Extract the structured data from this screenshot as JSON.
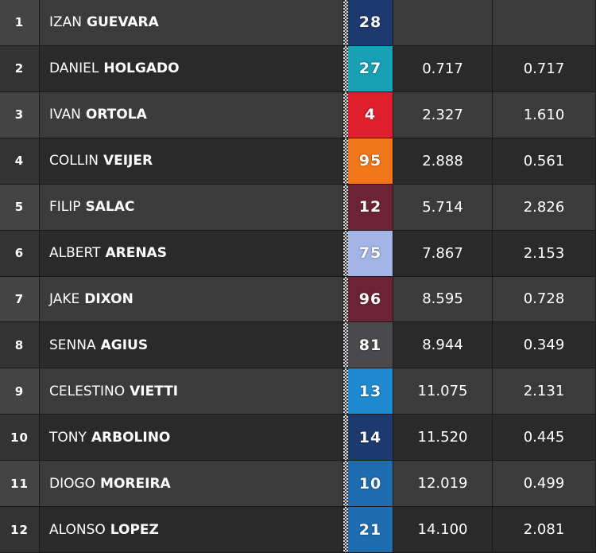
{
  "table": {
    "rows": [
      {
        "position": "1",
        "first_name": "IZAN",
        "last_name": "GUEVARA",
        "number": "28",
        "color": "#1d3a6f"
      },
      {
        "position": "2",
        "first_name": "DANIEL",
        "last_name": "HOLGADO",
        "number": "27",
        "color": "#17a0b6",
        "gap": "0.717",
        "interval": "0.717"
      },
      {
        "position": "3",
        "first_name": "IVAN",
        "last_name": "ORTOLA",
        "number": "4",
        "color": "#e01f2d",
        "gap": "2.327",
        "interval": "1.610"
      },
      {
        "position": "4",
        "first_name": "COLLIN",
        "last_name": "VEIJER",
        "number": "95",
        "color": "#f2771b",
        "gap": "2.888",
        "interval": "0.561"
      },
      {
        "position": "5",
        "first_name": "FILIP",
        "last_name": "SALAC",
        "number": "12",
        "color": "#6c2435",
        "gap": "5.714",
        "interval": "2.826"
      },
      {
        "position": "6",
        "first_name": "ALBERT",
        "last_name": "ARENAS",
        "number": "75",
        "color": "#a3b5e6",
        "gap": "7.867",
        "interval": "2.153"
      },
      {
        "position": "7",
        "first_name": "JAKE",
        "last_name": "DIXON",
        "number": "96",
        "color": "#6c2435",
        "gap": "8.595",
        "interval": "0.728"
      },
      {
        "position": "8",
        "first_name": "SENNA",
        "last_name": "AGIUS",
        "number": "81",
        "color": "#4a4a4d",
        "gap": "8.944",
        "interval": "0.349"
      },
      {
        "position": "9",
        "first_name": "CELESTINO",
        "last_name": "VIETTI",
        "number": "13",
        "color": "#1e8ad0",
        "gap": "11.075",
        "interval": "2.131"
      },
      {
        "position": "10",
        "first_name": "TONY",
        "last_name": "ARBOLINO",
        "number": "14",
        "color": "#1d3a6f",
        "gap": "11.520",
        "interval": "0.445"
      },
      {
        "position": "11",
        "first_name": "DIOGO",
        "last_name": "MOREIRA",
        "number": "10",
        "color": "#1f6db0",
        "gap": "12.019",
        "interval": "0.499"
      },
      {
        "position": "12",
        "first_name": "ALONSO",
        "last_name": "LOPEZ",
        "number": "21",
        "color": "#1f6db0",
        "gap": "14.100",
        "interval": "2.081"
      }
    ]
  }
}
